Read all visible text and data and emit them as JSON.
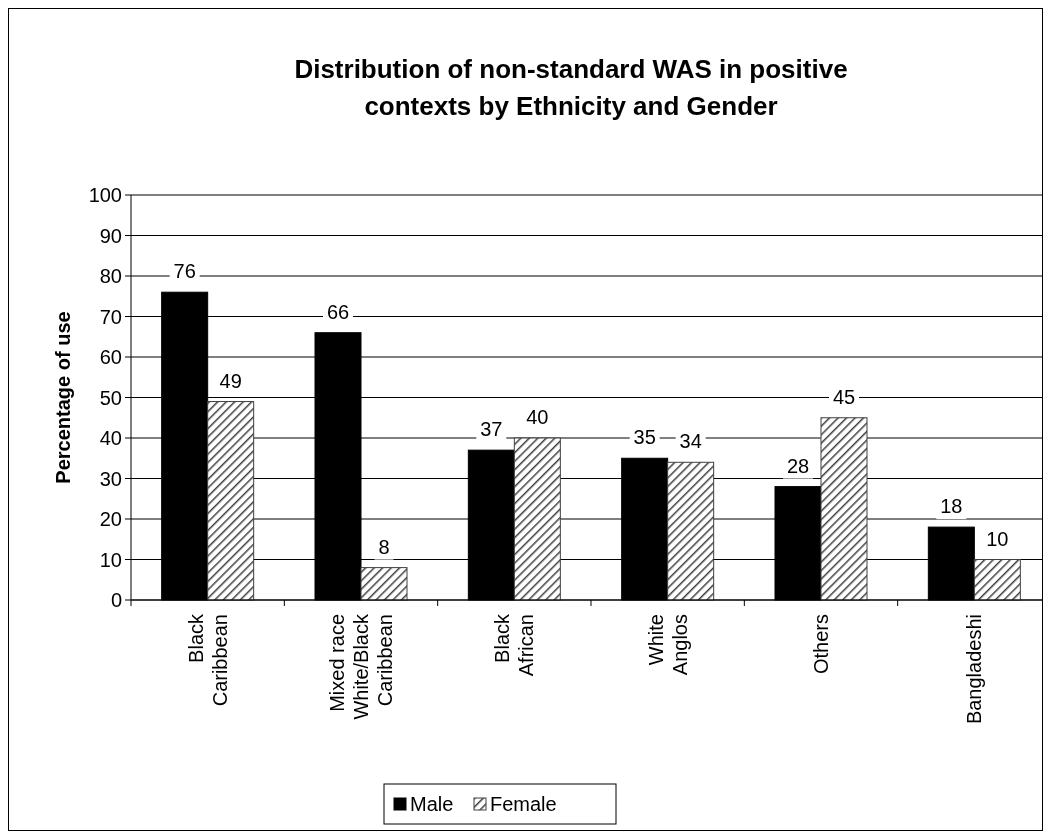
{
  "chart_data": {
    "type": "bar",
    "title": "Distribution of non-standard WAS in positive contexts by Ethnicity and Gender",
    "ylabel": "Percentage of use",
    "categories": [
      "Black\nCaribbean",
      "Mixed race\nWhite/Black\nCaribbean",
      "Black\nAfrican",
      "White\nAnglos",
      "Others",
      "Bangladeshi"
    ],
    "series": [
      {
        "name": "Male",
        "color": "#000000",
        "values": [
          76,
          66,
          37,
          35,
          28,
          18
        ]
      },
      {
        "name": "Female",
        "color": "#404040",
        "values": [
          49,
          8,
          40,
          34,
          45,
          10
        ]
      }
    ],
    "ylim": [
      0,
      100
    ],
    "yticks": [
      0,
      10,
      20,
      30,
      40,
      50,
      60,
      70,
      80,
      90,
      100
    ],
    "grid": "y",
    "data_labels": true,
    "legend": "bottom"
  }
}
